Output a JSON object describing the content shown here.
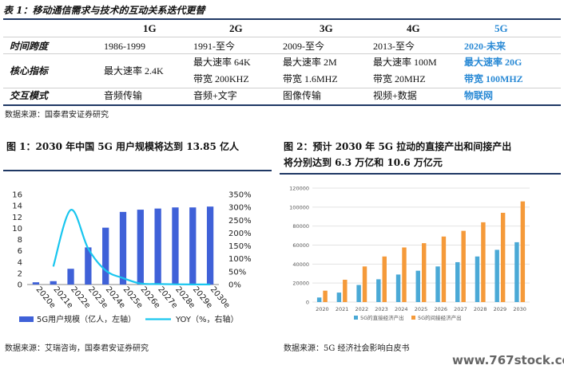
{
  "table": {
    "title": "表 1：移动通信需求与技术的互动关系迭代更替",
    "columns": [
      "1G",
      "2G",
      "3G",
      "4G",
      "5G"
    ],
    "rows": [
      {
        "label": "时间跨度",
        "cells": [
          [
            "1986-1999"
          ],
          [
            "1991-至今"
          ],
          [
            "2009-至今"
          ],
          [
            "2013-至今"
          ],
          [
            "2020-未来"
          ]
        ]
      },
      {
        "label": "核心指标",
        "cells": [
          [
            "最大速率 2.4K"
          ],
          [
            "最大速率 64K",
            "带宽 200KHZ"
          ],
          [
            "最大速率 2M",
            "带宽 1.6MHZ"
          ],
          [
            "最大速率 100M",
            "带宽 20MHZ"
          ],
          [
            "最大速率 20G",
            "带宽 100MHZ"
          ]
        ]
      },
      {
        "label": "交互模式",
        "cells": [
          [
            "音频传输"
          ],
          [
            "音频+文字"
          ],
          [
            "图像传输"
          ],
          [
            "视频+数据"
          ],
          [
            "物联网"
          ]
        ]
      }
    ],
    "source": "数据来源：国泰君安证券研究"
  },
  "figure1": {
    "title": "图 1：2030 年中国 5G 用户规模将达到 13.85 亿人",
    "source": "数据来源：艾瑞咨询，国泰君安证券研究",
    "chart_data": {
      "type": "bar",
      "categories": [
        "2020e",
        "2021e",
        "2022e",
        "2023e",
        "2024e",
        "2025e",
        "2026e",
        "2027e",
        "2028e",
        "2029e",
        "2030e"
      ],
      "series": [
        {
          "name": "5G用户规模（亿人，左轴）",
          "axis": "left",
          "type": "bar",
          "color": "#3f61d8",
          "values": [
            0.4,
            0.6,
            2.8,
            6.6,
            10.1,
            12.9,
            13.3,
            13.5,
            13.7,
            13.7,
            13.85
          ]
        },
        {
          "name": "YOY（%，右轴）",
          "axis": "right",
          "type": "line",
          "color": "#19c6ef",
          "values": [
            null,
            70,
            290,
            140,
            55,
            25,
            4,
            2,
            1,
            0.5,
            0.5
          ]
        }
      ],
      "y_left": {
        "min": 0,
        "max": 16,
        "ticks": [
          "0",
          "2",
          "4",
          "6",
          "8",
          "10",
          "12",
          "14",
          "16"
        ]
      },
      "y_right": {
        "min": 0,
        "max": 350,
        "ticks": [
          "0%",
          "50%",
          "100%",
          "150%",
          "200%",
          "250%",
          "300%",
          "350%"
        ]
      },
      "legend_position": "bottom",
      "grid": false
    }
  },
  "figure2": {
    "title_line1": "图 2：预计 2030 年 5G 拉动的直接产出和间接产出",
    "title_line2": "将分别达到 6.3 万亿和 10.6 万亿元",
    "source": "数据来源：5G 经济社会影响白皮书",
    "chart_data": {
      "type": "bar",
      "categories": [
        "2020",
        "2021",
        "2022",
        "2023",
        "2024",
        "2025",
        "2026",
        "2027",
        "2028",
        "2029",
        "2030"
      ],
      "series": [
        {
          "name": "5G的直接经济产出",
          "color": "#4aa9d6",
          "values": [
            4800,
            10000,
            18000,
            24000,
            29000,
            33000,
            37500,
            42000,
            48000,
            55000,
            63000
          ]
        },
        {
          "name": "5G的间接经济产出",
          "color": "#f59a3a",
          "values": [
            12000,
            23500,
            37500,
            48000,
            57500,
            62000,
            69000,
            75000,
            84000,
            94000,
            106000
          ]
        }
      ],
      "ylim": [
        0,
        120000
      ],
      "yticks": [
        "0",
        "20000",
        "40000",
        "60000",
        "80000",
        "100000",
        "120000"
      ],
      "legend_position": "bottom",
      "grid": true
    }
  },
  "watermark": "www.767stock.com"
}
